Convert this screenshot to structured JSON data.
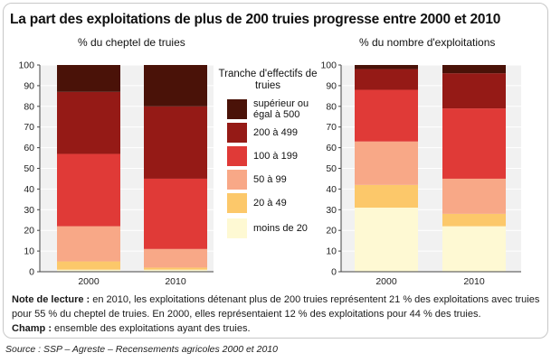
{
  "title": "La part des exploitations de plus de 200 truies progresse entre 2000 et 2010",
  "chart_data": [
    {
      "type": "bar",
      "stacked": true,
      "subtitle": "% du cheptel de truies",
      "categories": [
        "2000",
        "2010"
      ],
      "ylim": [
        0,
        100
      ],
      "yticks": [
        0,
        10,
        20,
        30,
        40,
        50,
        60,
        70,
        80,
        90,
        100
      ],
      "series": [
        {
          "name": "moins de 20",
          "values": [
            1,
            1
          ]
        },
        {
          "name": "20 à 49",
          "values": [
            4,
            1
          ]
        },
        {
          "name": "50 à 99",
          "values": [
            17,
            9
          ]
        },
        {
          "name": "100 à 199",
          "values": [
            35,
            34
          ]
        },
        {
          "name": "200 à 499",
          "values": [
            30,
            35
          ]
        },
        {
          "name": "supérieur ou égal à 500",
          "values": [
            13,
            20
          ]
        }
      ]
    },
    {
      "type": "bar",
      "stacked": true,
      "subtitle": "% du nombre d'exploitations",
      "categories": [
        "2000",
        "2010"
      ],
      "ylim": [
        0,
        100
      ],
      "yticks": [
        0,
        10,
        20,
        30,
        40,
        50,
        60,
        70,
        80,
        90,
        100
      ],
      "series": [
        {
          "name": "moins de 20",
          "values": [
            31,
            22
          ]
        },
        {
          "name": "20 à 49",
          "values": [
            11,
            6
          ]
        },
        {
          "name": "50 à 99",
          "values": [
            21,
            17
          ]
        },
        {
          "name": "100 à 199",
          "values": [
            25,
            34
          ]
        },
        {
          "name": "200 à 499",
          "values": [
            10,
            17
          ]
        },
        {
          "name": "supérieur ou égal à 500",
          "values": [
            2,
            4
          ]
        }
      ]
    }
  ],
  "legend": {
    "title": "Tranche d'effectifs de truies",
    "items": [
      {
        "label": "supérieur ou égal à 500",
        "color": "#4a1208"
      },
      {
        "label": "200 à 499",
        "color": "#951a16"
      },
      {
        "label": "100 à 199",
        "color": "#e03a37"
      },
      {
        "label": "50 à 99",
        "color": "#f8a887"
      },
      {
        "label": "20 à 49",
        "color": "#fcc86a"
      },
      {
        "label": "moins de 20",
        "color": "#fef9d3"
      }
    ]
  },
  "series_colors": [
    "#fef9d3",
    "#fcc86a",
    "#f8a887",
    "#e03a37",
    "#951a16",
    "#4a1208"
  ],
  "colors": {
    "plot_background": "#f1f1f1",
    "gridline": "#ffffff",
    "axis": "#444444"
  },
  "note": {
    "label": "Note de lecture :",
    "text_line1": " en 2010, les exploitations détenant plus de 200 truies représentent 21 % des exploitations avec truies",
    "text_line2": "pour 55 % du cheptel de truies. En 2000, elles représentaient 12 % des exploitations pour 44 % des truies.",
    "champ_label": "Champ :",
    "champ_text": " ensemble des exploitations ayant des truies."
  },
  "source": "Source : SSP – Agreste – Recensements agricoles 2000 et 2010"
}
